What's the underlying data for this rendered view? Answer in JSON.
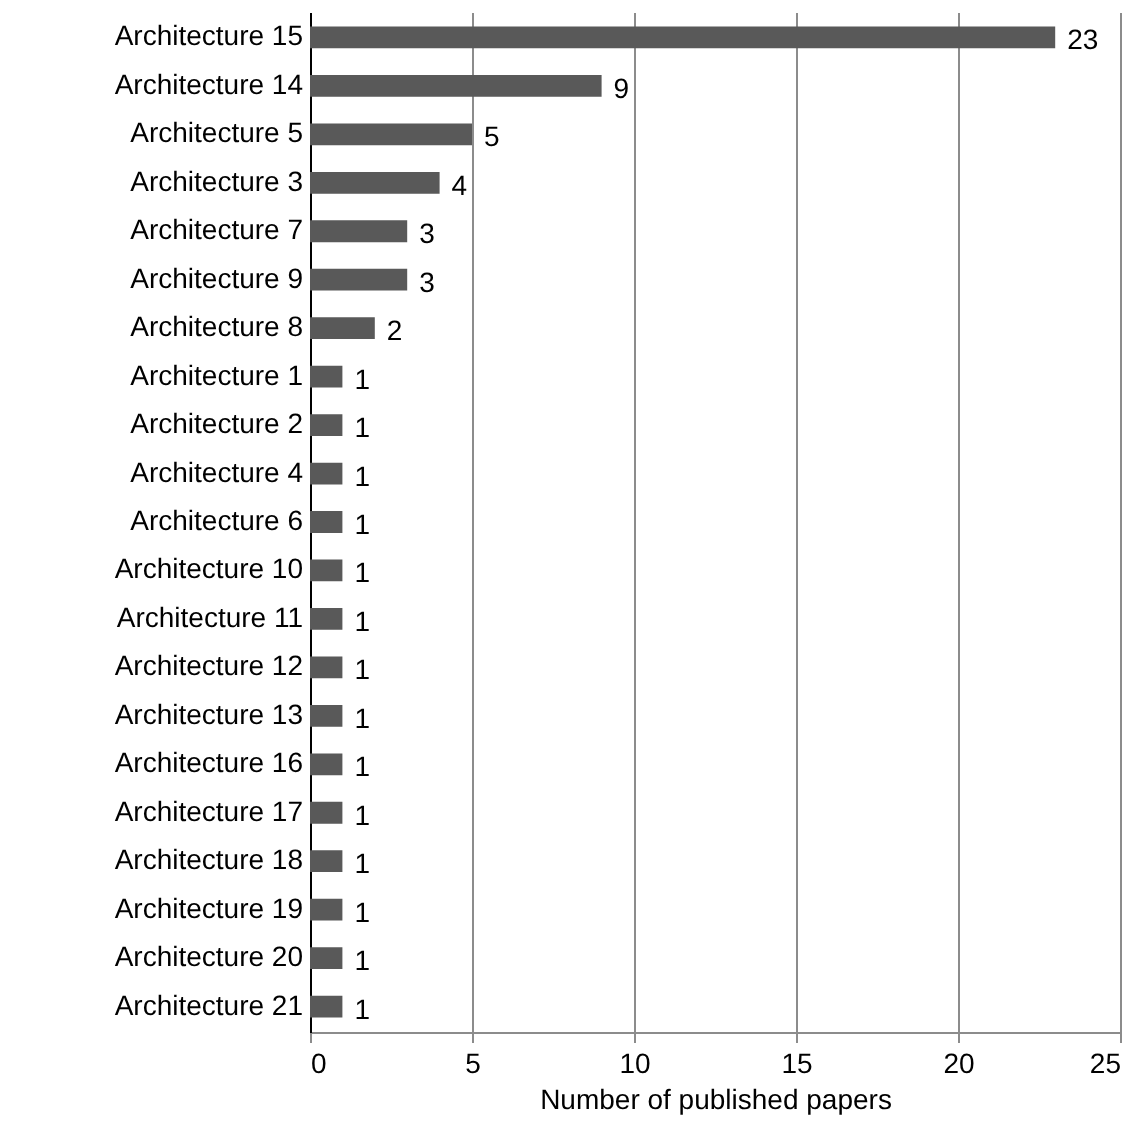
{
  "chart_data": {
    "type": "bar",
    "orientation": "horizontal",
    "xlabel": "Number of published papers",
    "categories": [
      "Architecture 15",
      "Architecture 14",
      "Architecture 5",
      "Architecture 3",
      "Architecture 7",
      "Architecture 9",
      "Architecture 8",
      "Architecture 1",
      "Architecture 2",
      "Architecture 4",
      "Architecture 6",
      "Architecture 10",
      "Architecture 11",
      "Architecture 12",
      "Architecture 13",
      "Architecture 16",
      "Architecture 17",
      "Architecture 18",
      "Architecture 19",
      "Architecture 20",
      "Architecture 21"
    ],
    "values": [
      23,
      9,
      5,
      4,
      3,
      3,
      2,
      1,
      1,
      1,
      1,
      1,
      1,
      1,
      1,
      1,
      1,
      1,
      1,
      1,
      1
    ],
    "color": "#595959",
    "xlim": [
      0,
      25
    ],
    "xticks": [
      0,
      5,
      10,
      15,
      20,
      25
    ],
    "grid": "x",
    "data_labels": true
  }
}
